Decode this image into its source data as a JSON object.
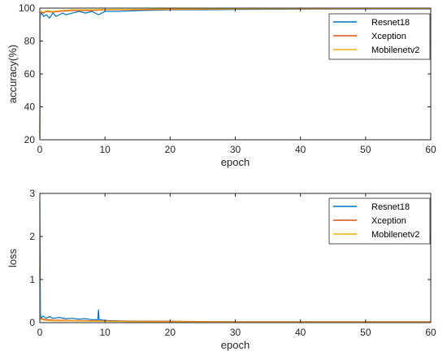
{
  "chart_data": [
    {
      "type": "line",
      "title": "",
      "xlabel": "epoch",
      "ylabel": "accuracy(%)",
      "xlim": [
        0,
        60
      ],
      "ylim": [
        20,
        100
      ],
      "xticks": [
        "0",
        "10",
        "20",
        "30",
        "40",
        "50",
        "60"
      ],
      "yticks": [
        "20",
        "40",
        "60",
        "80",
        "100"
      ],
      "grid": false,
      "legend_position": "top-right",
      "series": [
        {
          "name": "Resnet18",
          "color": "#0072BD",
          "x": [
            0,
            0.05,
            0.1,
            0.3,
            0.6,
            1,
            1.5,
            2,
            2.5,
            3,
            3.5,
            4,
            5,
            6,
            7,
            8,
            9,
            10,
            12,
            15,
            20,
            25,
            30,
            40,
            50,
            60
          ],
          "y": [
            21,
            93,
            96,
            97,
            95,
            96,
            94,
            97,
            95,
            96,
            97,
            96,
            97,
            98,
            97,
            98,
            96,
            98,
            98,
            98.5,
            99,
            99,
            99.2,
            99.4,
            99.5,
            99.5
          ]
        },
        {
          "name": "Xception",
          "color": "#D95319",
          "x": [
            0,
            0.05,
            0.1,
            0.3,
            0.6,
            1,
            2,
            3,
            5,
            8,
            10,
            15,
            20,
            30,
            40,
            50,
            60
          ],
          "y": [
            22,
            96,
            97,
            97.5,
            97,
            98,
            97.5,
            98,
            98.5,
            98.5,
            99,
            99,
            99.2,
            99.5,
            99.6,
            99.7,
            99.7
          ]
        },
        {
          "name": "Mobilenetv2",
          "color": "#EDB120",
          "x": [
            0,
            0.05,
            0.1,
            0.3,
            0.6,
            1,
            2,
            3,
            5,
            8,
            10,
            15,
            20,
            30,
            40,
            50,
            60
          ],
          "y": [
            23,
            97,
            98,
            98,
            97.5,
            98.5,
            98,
            98.5,
            99,
            99,
            99.2,
            99.3,
            99.5,
            99.6,
            99.7,
            99.8,
            99.8
          ]
        }
      ]
    },
    {
      "type": "line",
      "title": "",
      "xlabel": "epoch",
      "ylabel": "loss",
      "xlim": [
        0,
        60
      ],
      "ylim": [
        0,
        3
      ],
      "xticks": [
        "0",
        "10",
        "20",
        "30",
        "40",
        "50",
        "60"
      ],
      "yticks": [
        "0",
        "1",
        "2",
        "3"
      ],
      "grid": false,
      "legend_position": "top-right",
      "series": [
        {
          "name": "Resnet18",
          "color": "#0072BD",
          "x": [
            0,
            0.05,
            0.1,
            0.2,
            0.5,
            1,
            1.5,
            2,
            3,
            4,
            5,
            6,
            7,
            8,
            8.9,
            9,
            9.1,
            10,
            12,
            15,
            20,
            25,
            30,
            40,
            50,
            60
          ],
          "y": [
            2.8,
            1.3,
            0.2,
            0.1,
            0.15,
            0.1,
            0.14,
            0.1,
            0.12,
            0.09,
            0.1,
            0.08,
            0.09,
            0.07,
            0.07,
            0.3,
            0.07,
            0.05,
            0.04,
            0.03,
            0.03,
            0.02,
            0.02,
            0.02,
            0.02,
            0.02
          ]
        },
        {
          "name": "Xception",
          "color": "#D95319",
          "x": [
            0,
            0.05,
            0.1,
            0.5,
            1,
            2,
            5,
            10,
            15,
            20,
            30,
            40,
            50,
            60
          ],
          "y": [
            1.3,
            0.15,
            0.1,
            0.08,
            0.07,
            0.06,
            0.05,
            0.04,
            0.03,
            0.03,
            0.02,
            0.02,
            0.02,
            0.02
          ]
        },
        {
          "name": "Mobilenetv2",
          "color": "#EDB120",
          "x": [
            0,
            0.05,
            0.1,
            0.5,
            1,
            2,
            5,
            10,
            15,
            20,
            30,
            40,
            50,
            60
          ],
          "y": [
            1.2,
            0.12,
            0.08,
            0.06,
            0.05,
            0.04,
            0.04,
            0.03,
            0.02,
            0.02,
            0.01,
            0.01,
            0.01,
            0.01
          ]
        }
      ]
    }
  ]
}
